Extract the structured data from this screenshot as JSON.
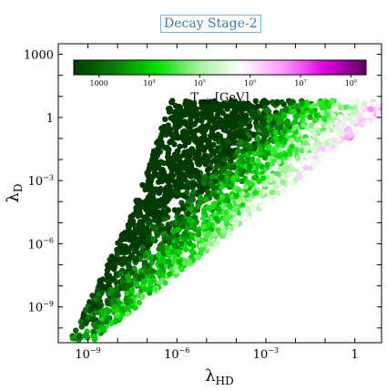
{
  "chart_data": {
    "type": "scatter",
    "title": "Decay Stage-2",
    "xlabel": "λ",
    "xlabel_sub": "HD",
    "ylabel": "λ",
    "ylabel_sub": "D",
    "x_scale": "log",
    "y_scale": "log",
    "xlim_log10": [
      -10.0,
      0.9
    ],
    "ylim_log10": [
      -10.7,
      3.5
    ],
    "x_ticks": [
      {
        "exp": -9,
        "label": "10",
        "sup": "−9"
      },
      {
        "exp": -6,
        "label": "10",
        "sup": "−6"
      },
      {
        "exp": -3,
        "label": "10",
        "sup": "−3"
      },
      {
        "exp": 0,
        "label": "1",
        "sup": ""
      }
    ],
    "y_ticks": [
      {
        "exp": -9,
        "label": "10",
        "sup": "−9"
      },
      {
        "exp": -6,
        "label": "10",
        "sup": "−6"
      },
      {
        "exp": -3,
        "label": "10",
        "sup": "−3"
      },
      {
        "exp": 0,
        "label": "1",
        "sup": ""
      },
      {
        "exp": 3,
        "label": "1000",
        "sup": ""
      }
    ],
    "colorbar": {
      "label": "T",
      "label_sub": "reh",
      "label_unit": " [GeV]",
      "scale": "log",
      "range_log10": [
        2.5,
        8.3
      ],
      "ticks": [
        {
          "exp": 3,
          "label": "1000",
          "sup": ""
        },
        {
          "exp": 4,
          "label": "10",
          "sup": "4"
        },
        {
          "exp": 5,
          "label": "10",
          "sup": "5"
        },
        {
          "exp": 6,
          "label": "10",
          "sup": "6"
        },
        {
          "exp": 7,
          "label": "10",
          "sup": "7"
        },
        {
          "exp": 8,
          "label": "10",
          "sup": "8"
        }
      ],
      "colormap": [
        "#003a00",
        "#0b7d0b",
        "#00e000",
        "#a8f0a0",
        "#ffffff",
        "#ff9cff",
        "#e000e0",
        "#5a005a"
      ]
    },
    "region": {
      "description_vertices_log10": [
        [
          -9.6,
          -10.6
        ],
        [
          -7.5,
          -4.5
        ],
        [
          -6.2,
          0.8
        ],
        [
          0.9,
          0.8
        ],
        [
          0.9,
          0.2
        ],
        [
          -8.8,
          -10.6
        ]
      ],
      "temperature_trend": "T_reh increases toward large λ_HD and small λ_D; lowest along upper-left edge"
    }
  }
}
